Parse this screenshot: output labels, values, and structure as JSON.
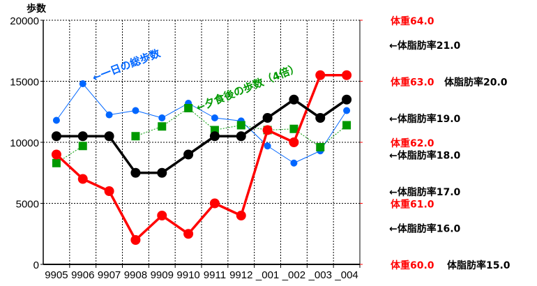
{
  "chart_data": {
    "type": "line",
    "ylabel": "歩数",
    "ylim": [
      0,
      20000
    ],
    "yticks": [
      "0",
      "5000",
      "10000",
      "15000",
      "20000"
    ],
    "categories": [
      "9905",
      "9906",
      "9907",
      "9908",
      "9909",
      "9910",
      "9911",
      "9912",
      "_001",
      "_002",
      "_003",
      "_004"
    ],
    "grid": true,
    "series": [
      {
        "name": "一日の総歩数",
        "axis": "steps",
        "color": "#0066ff",
        "marker": "diamond",
        "values": [
          11800,
          14800,
          12250,
          12600,
          12000,
          13200,
          12000,
          11750,
          9700,
          8300,
          9300,
          12600
        ]
      },
      {
        "name": "夕食後の歩数（4倍）",
        "axis": "steps",
        "color": "#009900",
        "marker": "square",
        "values": [
          8300,
          9700,
          null,
          10500,
          11300,
          12800,
          11000,
          11400,
          11000,
          11100,
          9600,
          11400
        ]
      },
      {
        "name": "体重",
        "axis": "weight",
        "color": "#ff0000",
        "marker": "circle",
        "values": [
          61.8,
          61.4,
          61.2,
          60.4,
          60.8,
          60.5,
          61.0,
          60.8,
          62.2,
          62.0,
          63.1,
          63.1
        ]
      },
      {
        "name": "体脂肪率",
        "axis": "fat",
        "color": "#000000",
        "marker": "circle",
        "values": [
          18.5,
          18.5,
          18.5,
          17.5,
          17.5,
          18.0,
          18.5,
          18.5,
          19.0,
          19.5,
          19.0,
          19.5
        ]
      }
    ],
    "weight_axis": {
      "range": [
        60,
        64
      ],
      "labels": [
        {
          "v": 60,
          "text": "体重60.0"
        },
        {
          "v": 61,
          "text": "体重61.0"
        },
        {
          "v": 62,
          "text": "体重62.0"
        },
        {
          "v": 63,
          "text": "体重63.0"
        },
        {
          "v": 64,
          "text": "体重64.0"
        }
      ]
    },
    "fat_axis": {
      "range": [
        15,
        21.67
      ],
      "labels": [
        {
          "v": 15,
          "text": "体脂肪率15.0"
        },
        {
          "v": 16,
          "text": "←体脂肪率16.0"
        },
        {
          "v": 17,
          "text": "←体脂肪率17.0"
        },
        {
          "v": 18,
          "text": "←体脂肪率18.0"
        },
        {
          "v": 19,
          "text": "←体脂肪率19.0"
        },
        {
          "v": 20,
          "text": "体脂肪率20.0"
        },
        {
          "v": 21,
          "text": "←体脂肪率21.0"
        }
      ]
    },
    "annotations": {
      "total": "←一日の総歩数",
      "evening": "←夕食後の歩数（4倍）"
    }
  }
}
